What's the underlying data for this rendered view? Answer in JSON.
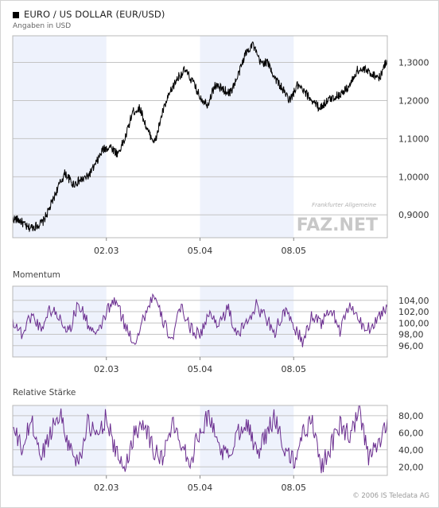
{
  "header": {
    "title": "EURO / US DOLLAR (EUR/USD)",
    "subtitle": "Angaben in USD"
  },
  "panels": {
    "momentum_label": "Momentum",
    "rsi_label": "Relative Stärke"
  },
  "watermark": {
    "top": "Frankfurter Allgemeine",
    "main": "FAZ.NET"
  },
  "footer": "© 2006 IS Teledata AG",
  "colors": {
    "price_line": "#000000",
    "indicator_line": "#6a2d8f",
    "band": "#eef2fc",
    "grid": "#c4c4c4"
  },
  "chart_data": [
    {
      "type": "line",
      "name": "price",
      "ylim": [
        0.84,
        1.37
      ],
      "ytick_values": [
        0.9,
        1.0,
        1.1,
        1.2,
        1.3
      ],
      "ytick_labels": [
        "0,9000",
        "1,0000",
        "1,1000",
        "1,2000",
        "1,3000"
      ],
      "xtick_labels": [
        "02.03",
        "05.04",
        "08.05"
      ],
      "x": [
        0,
        0.02,
        0.04,
        0.06,
        0.08,
        0.1,
        0.12,
        0.14,
        0.16,
        0.18,
        0.2,
        0.22,
        0.24,
        0.26,
        0.28,
        0.3,
        0.32,
        0.34,
        0.36,
        0.38,
        0.4,
        0.42,
        0.44,
        0.46,
        0.48,
        0.5,
        0.52,
        0.54,
        0.56,
        0.58,
        0.6,
        0.62,
        0.64,
        0.66,
        0.68,
        0.7,
        0.72,
        0.74,
        0.76,
        0.78,
        0.8,
        0.82,
        0.84,
        0.86,
        0.88,
        0.9,
        0.92,
        0.94,
        0.96,
        0.98,
        1.0
      ],
      "y": [
        0.89,
        0.885,
        0.865,
        0.87,
        0.88,
        0.92,
        0.97,
        1.01,
        0.98,
        0.99,
        1.0,
        1.03,
        1.07,
        1.08,
        1.06,
        1.1,
        1.17,
        1.18,
        1.12,
        1.09,
        1.17,
        1.22,
        1.26,
        1.28,
        1.25,
        1.21,
        1.19,
        1.24,
        1.23,
        1.22,
        1.26,
        1.32,
        1.35,
        1.3,
        1.3,
        1.26,
        1.23,
        1.2,
        1.24,
        1.22,
        1.2,
        1.18,
        1.2,
        1.21,
        1.22,
        1.24,
        1.28,
        1.28,
        1.27,
        1.26,
        1.31
      ]
    },
    {
      "type": "line",
      "name": "Momentum",
      "ylim": [
        94,
        106.5
      ],
      "ytick_values": [
        96,
        98,
        100,
        102,
        104
      ],
      "ytick_labels": [
        "96,00",
        "98,00",
        "100,00",
        "102,00",
        "104,00"
      ],
      "xtick_labels": [
        "02.03",
        "05.04",
        "08.05"
      ],
      "x": [
        0,
        0.025,
        0.05,
        0.075,
        0.1,
        0.125,
        0.15,
        0.175,
        0.2,
        0.225,
        0.25,
        0.275,
        0.3,
        0.325,
        0.35,
        0.375,
        0.4,
        0.425,
        0.45,
        0.475,
        0.5,
        0.525,
        0.55,
        0.575,
        0.6,
        0.625,
        0.65,
        0.675,
        0.7,
        0.725,
        0.75,
        0.775,
        0.8,
        0.825,
        0.85,
        0.875,
        0.9,
        0.925,
        0.95,
        0.975,
        1.0
      ],
      "y": [
        100.5,
        98.0,
        101.5,
        99.0,
        102.5,
        101.0,
        98.5,
        103.5,
        100.0,
        97.5,
        102.0,
        104.0,
        99.5,
        96.5,
        101.0,
        105.0,
        100.5,
        97.0,
        103.0,
        99.0,
        98.0,
        101.5,
        100.0,
        102.5,
        97.5,
        100.5,
        103.0,
        101.0,
        98.5,
        102.0,
        99.5,
        96.5,
        101.5,
        100.0,
        102.5,
        98.5,
        103.5,
        100.0,
        99.0,
        101.0,
        103.0
      ]
    },
    {
      "type": "line",
      "name": "Relative Stärke",
      "ylim": [
        10,
        92
      ],
      "ytick_values": [
        20,
        40,
        60,
        80
      ],
      "ytick_labels": [
        "20,00",
        "40,00",
        "60,00",
        "80,00"
      ],
      "xtick_labels": [
        "02.03",
        "05.04",
        "08.05"
      ],
      "x": [
        0,
        0.025,
        0.05,
        0.075,
        0.1,
        0.125,
        0.15,
        0.175,
        0.2,
        0.225,
        0.25,
        0.275,
        0.3,
        0.325,
        0.35,
        0.375,
        0.4,
        0.425,
        0.45,
        0.475,
        0.5,
        0.525,
        0.55,
        0.575,
        0.6,
        0.625,
        0.65,
        0.675,
        0.7,
        0.725,
        0.75,
        0.775,
        0.8,
        0.825,
        0.85,
        0.875,
        0.9,
        0.925,
        0.95,
        0.975,
        1.0
      ],
      "y": [
        65,
        40,
        75,
        30,
        60,
        85,
        45,
        25,
        70,
        55,
        80,
        35,
        20,
        60,
        75,
        40,
        30,
        70,
        50,
        25,
        65,
        80,
        45,
        30,
        60,
        75,
        35,
        55,
        80,
        40,
        25,
        60,
        75,
        20,
        45,
        70,
        55,
        85,
        30,
        45,
        75
      ]
    }
  ]
}
